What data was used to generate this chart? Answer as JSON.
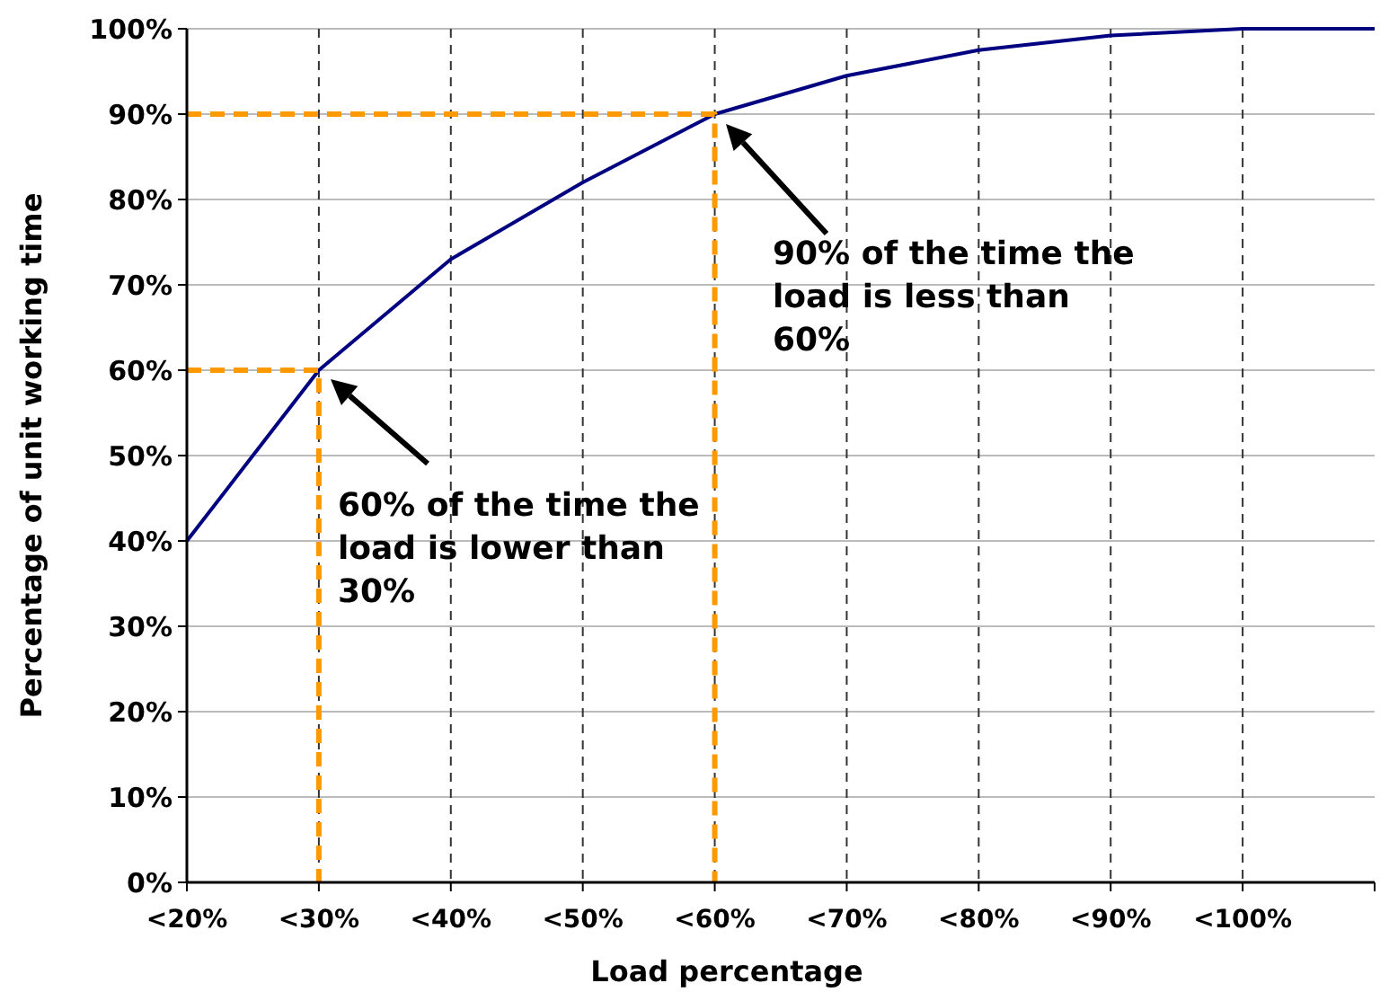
{
  "chart_data": {
    "type": "line",
    "xlabel": "Load percentage",
    "ylabel": "Percentage of unit working time",
    "categories": [
      "<20%",
      "<30%",
      "<40%",
      "<50%",
      "<60%",
      "<70%",
      "<80%",
      "<90%",
      "<100%",
      null
    ],
    "ylim": [
      0,
      100
    ],
    "yticks": [
      {
        "value": 0,
        "label": "0%"
      },
      {
        "value": 10,
        "label": "10%"
      },
      {
        "value": 20,
        "label": "20%"
      },
      {
        "value": 30,
        "label": "30%"
      },
      {
        "value": 40,
        "label": "40%"
      },
      {
        "value": 50,
        "label": "50%"
      },
      {
        "value": 60,
        "label": "60%"
      },
      {
        "value": 70,
        "label": "70%"
      },
      {
        "value": 80,
        "label": "80%"
      },
      {
        "value": 90,
        "label": "90%"
      },
      {
        "value": 100,
        "label": "100%"
      }
    ],
    "grid": true,
    "series": [
      {
        "color": "#000080",
        "line_style": "solid",
        "values": [
          40,
          60,
          73,
          82,
          90,
          94.5,
          97.5,
          99.2,
          100,
          100
        ]
      },
      {
        "color": "#ff9900",
        "line_style": "dashed",
        "x": [
          "<20%",
          "<30%",
          "<30%"
        ],
        "values": [
          60,
          60,
          0
        ]
      },
      {
        "color": "#ff9900",
        "line_style": "dashed",
        "x": [
          "<20%",
          "<60%",
          "<60%"
        ],
        "values": [
          90,
          90,
          0
        ]
      }
    ],
    "annotations": [
      "90% of the time the load is less than 60%",
      "60% of the time the load is lower than 30%"
    ]
  }
}
